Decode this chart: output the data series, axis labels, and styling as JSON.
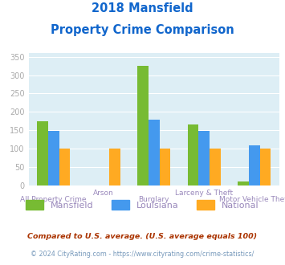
{
  "title_line1": "2018 Mansfield",
  "title_line2": "Property Crime Comparison",
  "categories": [
    "All Property Crime",
    "Arson",
    "Burglary",
    "Larceny & Theft",
    "Motor Vehicle Theft"
  ],
  "cat_labels_row1": [
    "",
    "Arson",
    "",
    "Larceny & Theft",
    ""
  ],
  "cat_labels_row2": [
    "All Property Crime",
    "",
    "Burglary",
    "",
    "Motor Vehicle Theft"
  ],
  "mansfield": [
    175,
    0,
    325,
    165,
    10
  ],
  "louisiana": [
    148,
    0,
    178,
    148,
    110
  ],
  "national": [
    100,
    100,
    100,
    100,
    100
  ],
  "mansfield_color": "#77bb33",
  "louisiana_color": "#4499ee",
  "national_color": "#ffaa22",
  "title_color": "#1166cc",
  "plot_bg": "#ddeef5",
  "ylabel_values": [
    0,
    50,
    100,
    150,
    200,
    250,
    300,
    350
  ],
  "ylim": [
    0,
    360
  ],
  "legend_labels": [
    "Mansfield",
    "Louisiana",
    "National"
  ],
  "footnote1": "Compared to U.S. average. (U.S. average equals 100)",
  "footnote2": "© 2024 CityRating.com - https://www.cityrating.com/crime-statistics/",
  "footnote1_color": "#aa3300",
  "footnote2_color": "#7799bb",
  "tick_label_color": "#9988bb",
  "yaxis_color": "#aaaaaa",
  "bar_width": 0.22
}
